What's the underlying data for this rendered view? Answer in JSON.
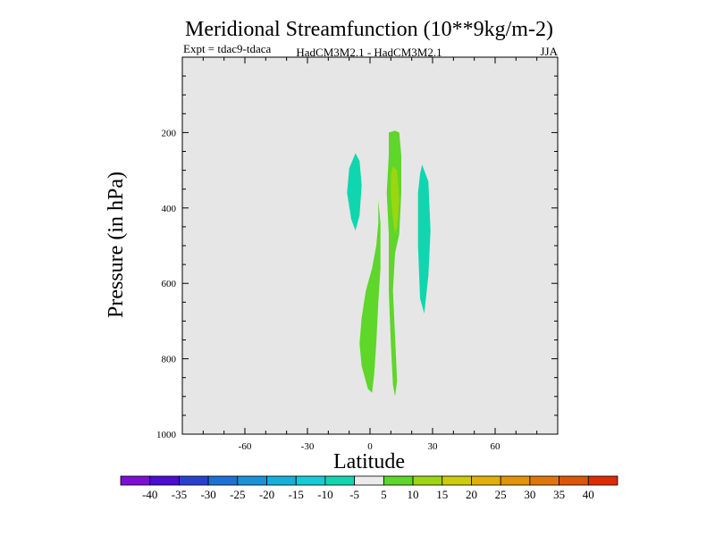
{
  "chart_data": {
    "type": "heatmap",
    "title": "Meridional Streamfunction (10**9kg/m-2)",
    "subtitle_left": "Expt = tdac9-tdaca",
    "subtitle_center": "HadCM3M2.1 - HadCM3M2.1",
    "subtitle_right": "JJA",
    "xlabel": "Latitude",
    "ylabel": "Pressure (in hPa)",
    "xlim": [
      -90,
      90
    ],
    "ylim": [
      1000,
      0
    ],
    "x_ticks": [
      -60,
      -30,
      0,
      30,
      60
    ],
    "x_tick_labels": [
      "-60",
      "-30",
      "0",
      "30",
      "60"
    ],
    "y_ticks": [
      200,
      400,
      600,
      800,
      1000
    ],
    "y_tick_labels": [
      "200",
      "400",
      "600",
      "800",
      "1000"
    ],
    "background_color": "#e6e6e6",
    "colorbar": {
      "colors": [
        "#7b0fd8",
        "#4a0cd6",
        "#2a3fd6",
        "#1e6fd8",
        "#1893d8",
        "#12b2d8",
        "#10cdd6",
        "#10d6b0",
        "#ebebeb",
        "#5ed62a",
        "#9bd60e",
        "#cdcc06",
        "#e0b006",
        "#e09406",
        "#e07606",
        "#e05406",
        "#e02a06"
      ],
      "labels": [
        "-40",
        "-35",
        "-30",
        "-25",
        "-20",
        "-15",
        "-10",
        "-5",
        "5",
        "10",
        "15",
        "20",
        "25",
        "30",
        "35",
        "40"
      ]
    },
    "regions": [
      {
        "level": "-10 to -5",
        "color": "#10d6b0",
        "polygon": [
          [
            -7,
            255
          ],
          [
            -5,
            275
          ],
          [
            -4,
            340
          ],
          [
            -5,
            420
          ],
          [
            -7,
            460
          ],
          [
            -9,
            430
          ],
          [
            -11,
            360
          ],
          [
            -10,
            295
          ]
        ]
      },
      {
        "level": "5 to 10",
        "color": "#5ed62a",
        "polygon": [
          [
            9,
            200
          ],
          [
            12,
            195
          ],
          [
            14,
            200
          ],
          [
            15,
            260
          ],
          [
            15,
            360
          ],
          [
            14,
            470
          ],
          [
            12,
            520
          ],
          [
            11,
            620
          ],
          [
            12,
            740
          ],
          [
            13,
            860
          ],
          [
            12,
            900
          ],
          [
            11,
            870
          ],
          [
            10,
            760
          ],
          [
            9,
            620
          ],
          [
            9,
            470
          ],
          [
            8,
            360
          ],
          [
            9,
            260
          ]
        ]
      },
      {
        "level": "10 to 15",
        "color": "#9bd60e",
        "polygon": [
          [
            11,
            290
          ],
          [
            13,
            300
          ],
          [
            14,
            380
          ],
          [
            13,
            450
          ],
          [
            12,
            470
          ],
          [
            11,
            430
          ],
          [
            10,
            370
          ],
          [
            10,
            310
          ]
        ]
      },
      {
        "level": "5 to 10",
        "color": "#5ed62a",
        "polygon": [
          [
            4,
            380
          ],
          [
            5,
            440
          ],
          [
            5,
            560
          ],
          [
            4,
            650
          ],
          [
            3,
            760
          ],
          [
            2,
            840
          ],
          [
            1,
            890
          ],
          [
            -1,
            880
          ],
          [
            -4,
            820
          ],
          [
            -5,
            760
          ],
          [
            -4,
            690
          ],
          [
            -2,
            620
          ],
          [
            1,
            560
          ],
          [
            3,
            500
          ],
          [
            4,
            440
          ]
        ]
      },
      {
        "level": "-10 to -5",
        "color": "#10d6b0",
        "polygon": [
          [
            25,
            285
          ],
          [
            28,
            330
          ],
          [
            29,
            460
          ],
          [
            28,
            580
          ],
          [
            26,
            680
          ],
          [
            24,
            640
          ],
          [
            23,
            500
          ],
          [
            23,
            360
          ],
          [
            24,
            310
          ]
        ]
      }
    ]
  }
}
